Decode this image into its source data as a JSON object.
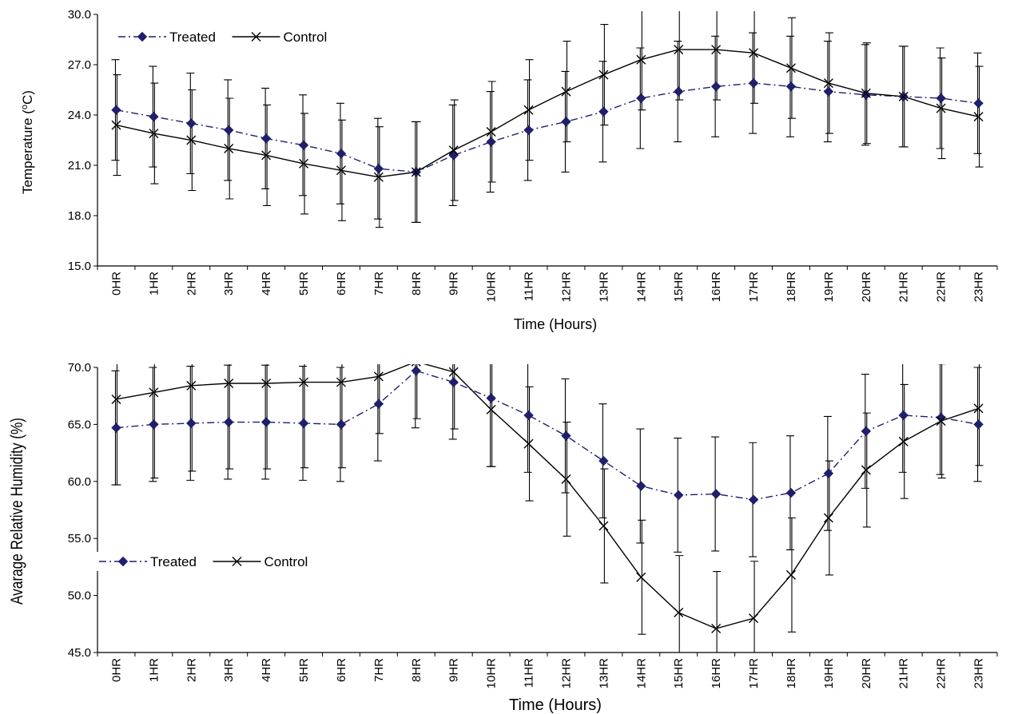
{
  "chart_data": [
    {
      "type": "line",
      "title": "",
      "xlabel": "Time (Hours)",
      "ylabel": "Temperature (°C)",
      "ylabel_parts": [
        "Temperature (",
        "o",
        "C)"
      ],
      "ylim": [
        15.0,
        30.0
      ],
      "yticks": [
        "15.0",
        "18.0",
        "21.0",
        "24.0",
        "27.0",
        "30.0"
      ],
      "grid": false,
      "legend_position": "top-left",
      "categories": [
        "0HR",
        "1HR",
        "2HR",
        "3HR",
        "4HR",
        "5HR",
        "6HR",
        "7HR",
        "8HR",
        "9HR",
        "10HR",
        "11HR",
        "12HR",
        "13HR",
        "14HR",
        "15HR",
        "16HR",
        "17HR",
        "18HR",
        "19HR",
        "20HR",
        "21HR",
        "22HR",
        "23HR"
      ],
      "series": [
        {
          "name": "Treated",
          "color": "#1f1f6b",
          "line_style": "dash-dot",
          "marker": "diamond",
          "values": [
            24.3,
            23.9,
            23.5,
            23.1,
            22.6,
            22.2,
            21.7,
            20.8,
            20.6,
            21.6,
            22.4,
            23.1,
            23.6,
            24.2,
            25.0,
            25.4,
            25.7,
            25.9,
            25.7,
            25.4,
            25.2,
            25.1,
            25.0,
            24.7
          ],
          "error": [
            3.0,
            3.0,
            3.0,
            3.0,
            3.0,
            3.0,
            3.0,
            3.0,
            3.0,
            3.0,
            3.0,
            3.0,
            3.0,
            3.0,
            3.0,
            3.0,
            3.0,
            3.0,
            3.0,
            3.0,
            3.0,
            3.0,
            3.0,
            3.0
          ]
        },
        {
          "name": "Control",
          "color": "#000000",
          "line_style": "solid",
          "marker": "x",
          "values": [
            23.4,
            22.9,
            22.5,
            22.0,
            21.6,
            21.1,
            20.7,
            20.3,
            20.6,
            21.9,
            23.0,
            24.3,
            25.4,
            26.4,
            27.3,
            27.9,
            27.9,
            27.7,
            26.8,
            25.9,
            25.3,
            25.1,
            24.4,
            23.9
          ],
          "error": [
            3.0,
            3.0,
            3.0,
            3.0,
            3.0,
            3.0,
            3.0,
            3.0,
            3.0,
            3.0,
            3.0,
            3.0,
            3.0,
            3.0,
            3.0,
            3.0,
            3.0,
            3.0,
            3.0,
            3.0,
            3.0,
            3.0,
            3.0,
            3.0
          ]
        }
      ]
    },
    {
      "type": "line",
      "title": "",
      "xlabel": "Time (Hours)",
      "ylabel": "Avarage Relative Humidity (%)",
      "ylabel_parts": [
        "Avarage Relative Humidity (%)"
      ],
      "ylim": [
        45.0,
        70.0
      ],
      "yticks": [
        "45.0",
        "50.0",
        "55.0",
        "60.0",
        "65.0",
        "70.0"
      ],
      "grid": false,
      "legend_position": "middle-left",
      "categories": [
        "0HR",
        "1HR",
        "2HR",
        "3HR",
        "4HR",
        "5HR",
        "6HR",
        "7HR",
        "8HR",
        "9HR",
        "10HR",
        "11HR",
        "12HR",
        "13HR",
        "14HR",
        "15HR",
        "16HR",
        "17HR",
        "18HR",
        "19HR",
        "20HR",
        "21HR",
        "22HR",
        "23HR"
      ],
      "series": [
        {
          "name": "Treated",
          "color": "#1f1f6b",
          "line_style": "dash-dot",
          "marker": "diamond",
          "values": [
            64.7,
            65.0,
            65.1,
            65.2,
            65.2,
            65.1,
            65.0,
            66.8,
            69.7,
            68.7,
            67.3,
            65.8,
            64.0,
            61.8,
            59.6,
            58.8,
            58.9,
            58.4,
            59.0,
            60.7,
            64.4,
            65.8,
            65.6,
            65.0
          ],
          "error": [
            5.0,
            5.0,
            5.0,
            5.0,
            5.0,
            5.0,
            5.0,
            5.0,
            5.0,
            5.0,
            6.0,
            5.0,
            5.0,
            5.0,
            5.0,
            5.0,
            5.0,
            5.0,
            5.0,
            5.0,
            5.0,
            5.0,
            5.0,
            5.0
          ]
        },
        {
          "name": "Control",
          "color": "#000000",
          "line_style": "solid",
          "marker": "x",
          "values": [
            67.2,
            67.8,
            68.4,
            68.6,
            68.6,
            68.7,
            68.7,
            69.2,
            70.5,
            69.6,
            66.3,
            63.3,
            60.2,
            56.1,
            51.6,
            48.5,
            47.1,
            48.0,
            51.8,
            56.8,
            61.0,
            63.5,
            65.3,
            66.4
          ],
          "error": [
            7.5,
            7.5,
            7.5,
            7.5,
            7.5,
            7.5,
            7.5,
            5.0,
            5.0,
            5.0,
            5.0,
            5.0,
            5.0,
            5.0,
            5.0,
            5.0,
            5.0,
            5.0,
            5.0,
            5.0,
            5.0,
            5.0,
            5.0,
            5.0
          ]
        }
      ]
    }
  ]
}
